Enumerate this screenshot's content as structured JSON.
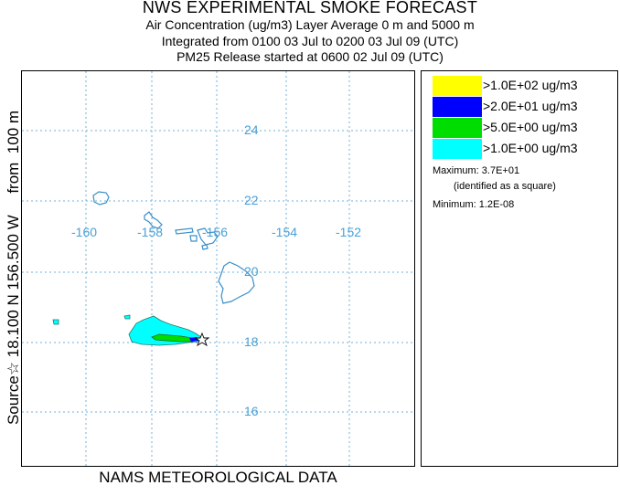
{
  "header": {
    "title": "NWS EXPERIMENTAL SMOKE FORECAST",
    "line2": "Air Concentration (ug/m3) Layer Average    0 m and  5000 m",
    "line3": "Integrated from 0100 03 Jul to 0200 03 Jul 09 (UTC)",
    "line4": "PM25 Release started at 0600 02 Jul 09 (UTC)"
  },
  "side_label": "Source☆ 18.100 N 156.500 W     from  100 m",
  "footer": "NAMS METEOROLOGICAL DATA",
  "map": {
    "longitudes": [
      "-160",
      "-158",
      "-156",
      "-154",
      "-152"
    ],
    "latitudes": [
      "24",
      "22",
      "20",
      "18",
      "16"
    ],
    "colors": {
      "grid": "#6fb2dc",
      "coast": "#3a8fc8",
      "labels": "#4a9fd5"
    }
  },
  "legend": {
    "items": [
      {
        "label": ">1.0E+02 ug/m3",
        "color": "#ffff00"
      },
      {
        "label": ">2.0E+01 ug/m3",
        "color": "#0000ff"
      },
      {
        "label": ">5.0E+00 ug/m3",
        "color": "#00dd00"
      },
      {
        "label": ">1.0E+00 ug/m3",
        "color": "#00ffff"
      }
    ],
    "maximum": "Maximum: 3.7E+01",
    "maximum_note": "(identified as a square)",
    "minimum": "Minimum: 1.2E-08"
  }
}
